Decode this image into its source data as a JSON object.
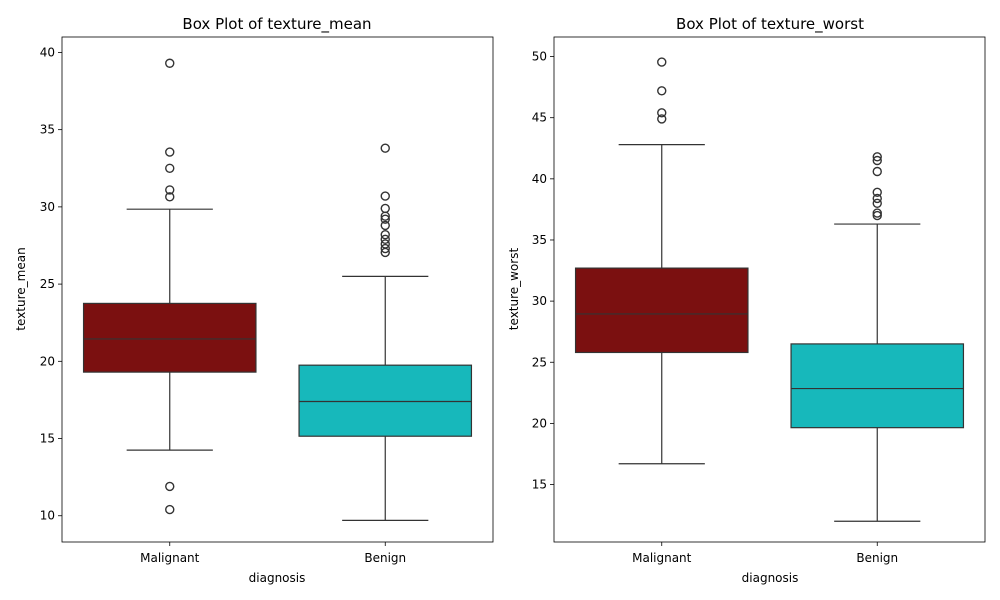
{
  "chart_data": [
    {
      "type": "box",
      "title": "Box Plot of texture_mean",
      "xlabel": "diagnosis",
      "ylabel": "texture_mean",
      "ylim": [
        8.3,
        41.0
      ],
      "yticks": [
        10,
        15,
        20,
        25,
        30,
        35,
        40
      ],
      "categories": [
        "Malignant",
        "Benign"
      ],
      "colors": [
        "#7b1010",
        "#17b8bb"
      ],
      "boxes": [
        {
          "category": "Malignant",
          "whisker_low": 14.25,
          "q1": 19.3,
          "median": 21.45,
          "q3": 23.75,
          "whisker_high": 29.85,
          "outliers": [
            39.3,
            33.55,
            32.5,
            31.1,
            30.65,
            11.9,
            10.4
          ]
        },
        {
          "category": "Benign",
          "whisker_low": 9.7,
          "q1": 15.15,
          "median": 17.4,
          "q3": 19.75,
          "whisker_high": 25.5,
          "outliers": [
            33.8,
            30.7,
            29.9,
            29.4,
            29.2,
            28.8,
            28.2,
            27.9,
            27.6,
            27.3,
            27.05
          ]
        }
      ]
    },
    {
      "type": "box",
      "title": "Box Plot of texture_worst",
      "xlabel": "diagnosis",
      "ylabel": "texture_worst",
      "ylim": [
        10.3,
        51.6
      ],
      "yticks": [
        15,
        20,
        25,
        30,
        35,
        40,
        45,
        50
      ],
      "categories": [
        "Malignant",
        "Benign"
      ],
      "colors": [
        "#7b1010",
        "#17b8bb"
      ],
      "boxes": [
        {
          "category": "Malignant",
          "whisker_low": 16.7,
          "q1": 25.8,
          "median": 28.95,
          "q3": 32.7,
          "whisker_high": 42.8,
          "outliers": [
            49.55,
            47.2,
            45.4,
            44.9
          ]
        },
        {
          "category": "Benign",
          "whisker_low": 12.0,
          "q1": 19.65,
          "median": 22.85,
          "q3": 26.5,
          "whisker_high": 36.3,
          "outliers": [
            41.8,
            41.5,
            40.6,
            38.9,
            38.4,
            38.0,
            37.2,
            37.0
          ]
        }
      ]
    }
  ]
}
